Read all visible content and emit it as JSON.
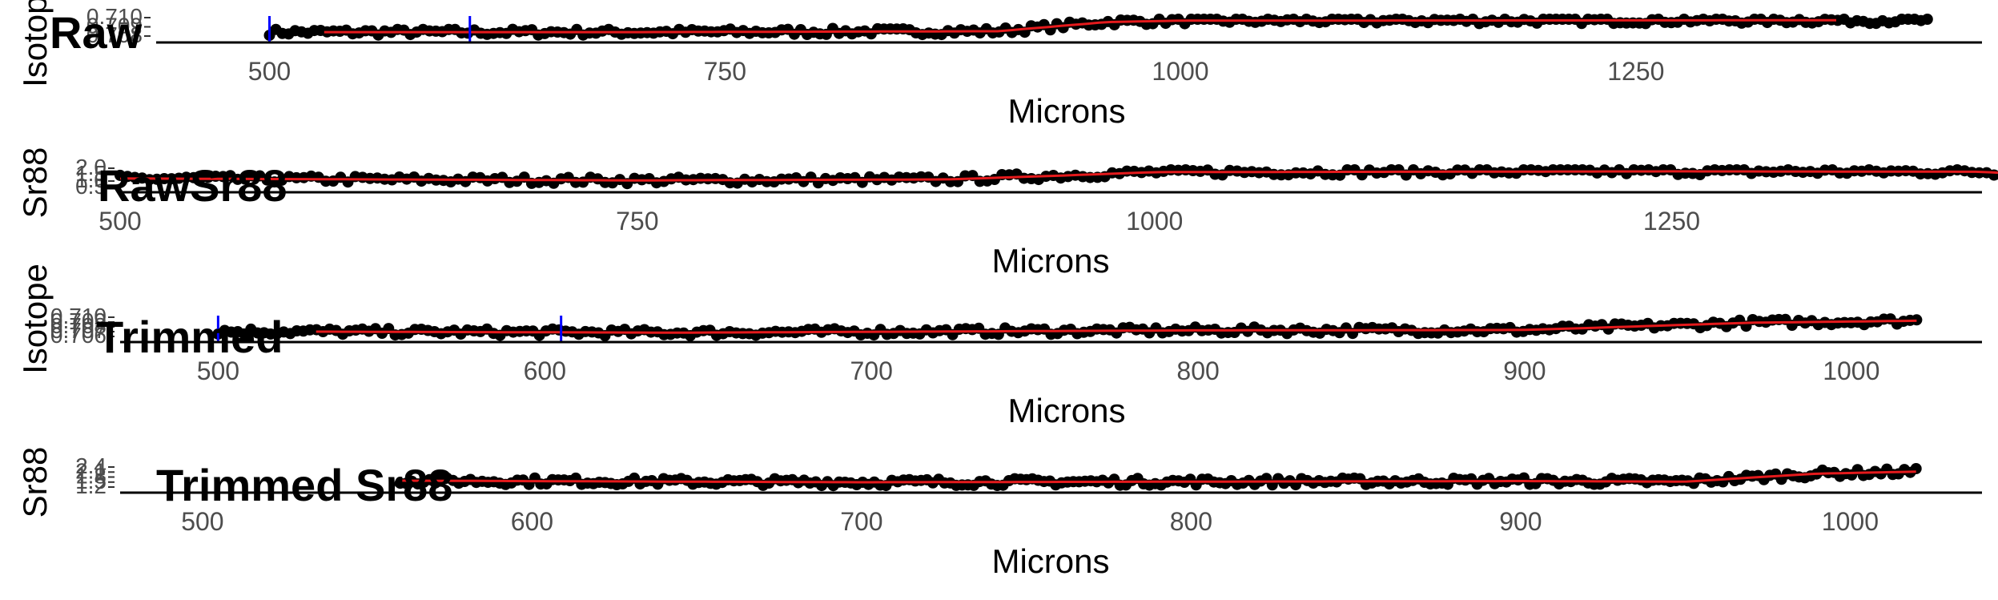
{
  "colors": {
    "points": "#000000",
    "smooth": "#e41a1c",
    "marker": "#0000ff",
    "axis": "#000000",
    "text": "#4d4d4d"
  },
  "chart_data": [
    {
      "type": "scatter",
      "title": "Raw",
      "xlabel": "Microns",
      "ylabel": "Isotope",
      "xlim": [
        440,
        1440
      ],
      "xticks": [
        500,
        750,
        1000,
        1250
      ],
      "ytick_labels": [
        "0.710",
        "0.709",
        "0.708"
      ],
      "x_range": [
        500,
        1410
      ],
      "level_profile": [
        [
          500,
          0.3
        ],
        [
          700,
          0.3
        ],
        [
          900,
          0.35
        ],
        [
          960,
          0.85
        ],
        [
          1000,
          0.92
        ],
        [
          1410,
          0.95
        ]
      ],
      "smooth_range": [
        530,
        1360
      ],
      "markers": [
        500,
        610
      ]
    },
    {
      "type": "scatter",
      "title": "RawSr88",
      "xlabel": "Microns",
      "ylabel": "Sr88",
      "xlim": [
        500,
        1400
      ],
      "xticks": [
        500,
        750,
        1000,
        1250
      ],
      "ytick_labels": [
        "2.0",
        "1.5",
        "1.0",
        "0.5"
      ],
      "x_range": [
        500,
        1420
      ],
      "level_profile": [
        [
          500,
          0.55
        ],
        [
          750,
          0.45
        ],
        [
          900,
          0.5
        ],
        [
          960,
          0.72
        ],
        [
          1000,
          0.88
        ],
        [
          1250,
          0.92
        ],
        [
          1400,
          0.9
        ],
        [
          1415,
          0.8
        ],
        [
          1420,
          0.02
        ]
      ],
      "smooth_range": [
        500,
        1420
      ],
      "markers": []
    },
    {
      "type": "scatter",
      "title": "Trimmed",
      "xlabel": "Microns",
      "ylabel": "Isotope",
      "xlim": [
        470,
        1040
      ],
      "xticks": [
        500,
        600,
        700,
        800,
        900,
        1000
      ],
      "ytick_labels": [
        "0.710",
        "0.709",
        "0.708",
        "0.707",
        "0.706"
      ],
      "x_range": [
        500,
        1020
      ],
      "level_profile": [
        [
          500,
          0.35
        ],
        [
          640,
          0.28
        ],
        [
          800,
          0.4
        ],
        [
          900,
          0.42
        ],
        [
          970,
          0.8
        ],
        [
          1020,
          0.9
        ]
      ],
      "smooth_range": [
        530,
        1020
      ],
      "markers": [
        500,
        605
      ]
    },
    {
      "type": "scatter",
      "title": "Trimmed Sr88",
      "xlabel": "Microns",
      "ylabel": "Sr88",
      "xlim": [
        475,
        1040
      ],
      "xticks": [
        500,
        600,
        700,
        800,
        900,
        1000
      ],
      "ytick_labels": [
        "2.4",
        "2.1",
        "1.8",
        "1.5",
        "1.2"
      ],
      "x_range": [
        560,
        1020
      ],
      "level_profile": [
        [
          560,
          0.4
        ],
        [
          700,
          0.32
        ],
        [
          900,
          0.38
        ],
        [
          950,
          0.35
        ],
        [
          990,
          0.75
        ],
        [
          1020,
          0.85
        ]
      ],
      "smooth_range": [
        560,
        1020
      ],
      "markers": []
    }
  ]
}
